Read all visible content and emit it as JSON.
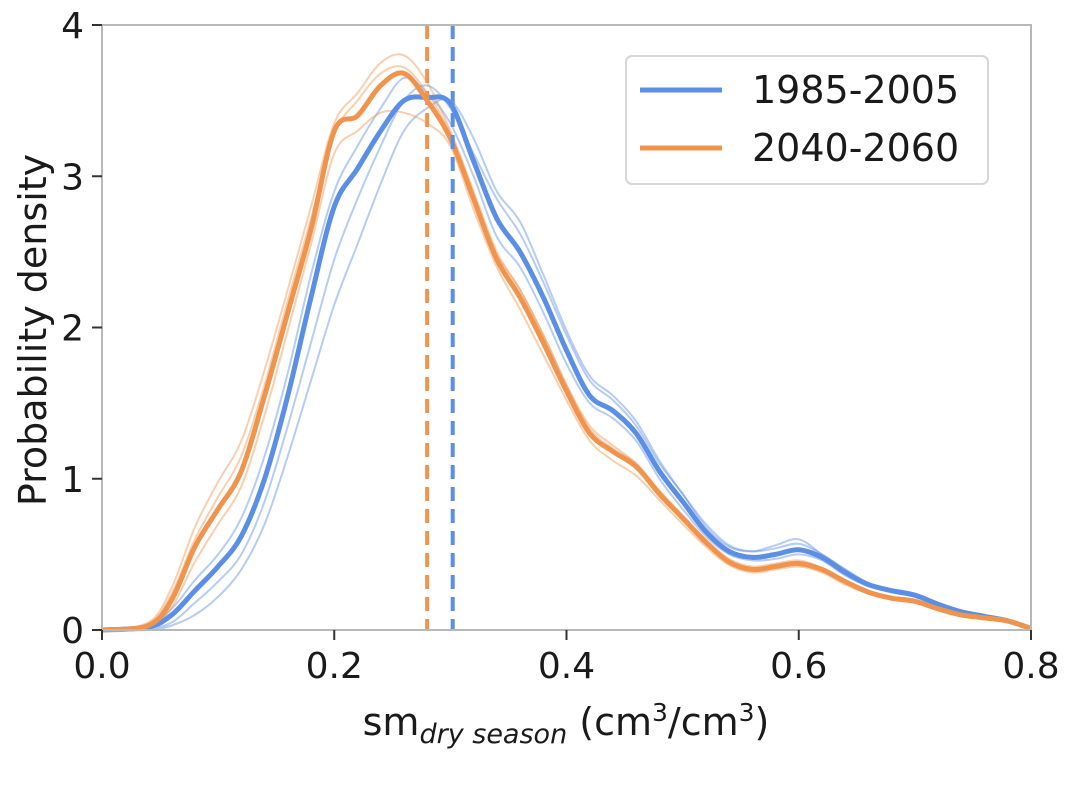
{
  "chart_data": {
    "type": "line",
    "xlabel_main": "sm",
    "xlabel_sub": "dry season",
    "xlabel_unit_open": " (cm",
    "xlabel_sup1": "3",
    "xlabel_unit_mid": "/cm",
    "xlabel_sup2": "3",
    "xlabel_unit_close": ")",
    "ylabel": "Probability density",
    "xlim": [
      0.0,
      0.8
    ],
    "ylim": [
      0,
      4
    ],
    "xticks": [
      "0.0",
      "0.2",
      "0.4",
      "0.6",
      "0.8"
    ],
    "yticks": [
      "0",
      "1",
      "2",
      "3",
      "4"
    ],
    "grid": false,
    "legend_position": "top-right",
    "legend": [
      "1985-2005",
      "2040-2060"
    ],
    "series": [
      {
        "name": "1985-2005",
        "color": "#5b8fe6",
        "mean_line_x": 0.302,
        "x": [
          0.0,
          0.04,
          0.06,
          0.08,
          0.1,
          0.12,
          0.14,
          0.16,
          0.18,
          0.2,
          0.22,
          0.24,
          0.26,
          0.28,
          0.3,
          0.32,
          0.34,
          0.36,
          0.38,
          0.4,
          0.42,
          0.44,
          0.46,
          0.48,
          0.5,
          0.52,
          0.54,
          0.56,
          0.58,
          0.6,
          0.62,
          0.64,
          0.66,
          0.68,
          0.7,
          0.72,
          0.74,
          0.76,
          0.78,
          0.8
        ],
        "values": [
          0.0,
          0.02,
          0.1,
          0.26,
          0.42,
          0.62,
          1.0,
          1.55,
          2.2,
          2.8,
          3.05,
          3.3,
          3.5,
          3.52,
          3.48,
          3.1,
          2.72,
          2.5,
          2.2,
          1.85,
          1.55,
          1.45,
          1.3,
          1.05,
          0.85,
          0.65,
          0.52,
          0.48,
          0.5,
          0.53,
          0.48,
          0.38,
          0.3,
          0.26,
          0.23,
          0.17,
          0.12,
          0.09,
          0.06,
          0.01
        ],
        "ensemble": [
          [
            0.0,
            0.01,
            0.05,
            0.18,
            0.32,
            0.5,
            0.85,
            1.35,
            1.9,
            2.45,
            2.85,
            3.2,
            3.5,
            3.6,
            3.45,
            3.15,
            2.85,
            2.62,
            2.3,
            1.95,
            1.65,
            1.52,
            1.35,
            1.1,
            0.9,
            0.68,
            0.55,
            0.52,
            0.56,
            0.6,
            0.5,
            0.4,
            0.31,
            0.27,
            0.24,
            0.18,
            0.13,
            0.1,
            0.06,
            0.01
          ],
          [
            0.0,
            0.03,
            0.14,
            0.33,
            0.5,
            0.74,
            1.15,
            1.7,
            2.35,
            2.9,
            3.2,
            3.45,
            3.65,
            3.55,
            3.35,
            3.0,
            2.6,
            2.4,
            2.1,
            1.76,
            1.5,
            1.4,
            1.25,
            1.0,
            0.8,
            0.62,
            0.5,
            0.46,
            0.47,
            0.5,
            0.46,
            0.36,
            0.29,
            0.25,
            0.22,
            0.16,
            0.11,
            0.08,
            0.05,
            0.01
          ],
          [
            0.0,
            0.0,
            0.03,
            0.1,
            0.22,
            0.4,
            0.7,
            1.15,
            1.65,
            2.15,
            2.55,
            2.95,
            3.3,
            3.45,
            3.5,
            3.25,
            2.9,
            2.7,
            2.35,
            1.98,
            1.68,
            1.55,
            1.38,
            1.12,
            0.9,
            0.7,
            0.56,
            0.52,
            0.54,
            0.57,
            0.5,
            0.4,
            0.31,
            0.27,
            0.24,
            0.18,
            0.13,
            0.1,
            0.06,
            0.02
          ]
        ]
      },
      {
        "name": "2040-2060",
        "color": "#f0944d",
        "mean_line_x": 0.28,
        "x": [
          0.0,
          0.04,
          0.06,
          0.08,
          0.1,
          0.12,
          0.14,
          0.16,
          0.18,
          0.2,
          0.22,
          0.24,
          0.26,
          0.28,
          0.3,
          0.32,
          0.34,
          0.36,
          0.38,
          0.4,
          0.42,
          0.44,
          0.46,
          0.48,
          0.5,
          0.52,
          0.54,
          0.56,
          0.58,
          0.6,
          0.62,
          0.64,
          0.66,
          0.68,
          0.7,
          0.72,
          0.74,
          0.76,
          0.78,
          0.8
        ],
        "values": [
          0.0,
          0.03,
          0.2,
          0.55,
          0.8,
          1.05,
          1.55,
          2.1,
          2.65,
          3.3,
          3.4,
          3.6,
          3.68,
          3.5,
          3.25,
          2.85,
          2.45,
          2.2,
          1.9,
          1.58,
          1.3,
          1.18,
          1.08,
          0.9,
          0.74,
          0.58,
          0.45,
          0.4,
          0.42,
          0.44,
          0.4,
          0.32,
          0.25,
          0.21,
          0.19,
          0.14,
          0.1,
          0.08,
          0.06,
          0.01
        ],
        "ensemble": [
          [
            0.0,
            0.05,
            0.28,
            0.68,
            0.98,
            1.25,
            1.72,
            2.25,
            2.8,
            3.35,
            3.55,
            3.75,
            3.8,
            3.62,
            3.3,
            2.9,
            2.5,
            2.25,
            1.95,
            1.62,
            1.35,
            1.22,
            1.1,
            0.92,
            0.75,
            0.59,
            0.46,
            0.41,
            0.43,
            0.45,
            0.41,
            0.33,
            0.26,
            0.22,
            0.2,
            0.15,
            0.1,
            0.08,
            0.06,
            0.01
          ],
          [
            0.0,
            0.02,
            0.15,
            0.45,
            0.7,
            0.95,
            1.42,
            1.98,
            2.55,
            3.15,
            3.3,
            3.42,
            3.42,
            3.35,
            3.2,
            2.78,
            2.4,
            2.12,
            1.82,
            1.52,
            1.25,
            1.12,
            1.02,
            0.86,
            0.7,
            0.55,
            0.43,
            0.38,
            0.4,
            0.42,
            0.38,
            0.3,
            0.24,
            0.2,
            0.18,
            0.13,
            0.09,
            0.07,
            0.05,
            0.01
          ],
          [
            0.0,
            0.04,
            0.24,
            0.6,
            0.88,
            1.15,
            1.62,
            2.18,
            2.72,
            3.28,
            3.5,
            3.68,
            3.72,
            3.55,
            3.28,
            2.85,
            2.48,
            2.25,
            1.95,
            1.62,
            1.33,
            1.2,
            1.1,
            0.92,
            0.76,
            0.6,
            0.47,
            0.42,
            0.44,
            0.46,
            0.41,
            0.33,
            0.26,
            0.22,
            0.2,
            0.15,
            0.11,
            0.09,
            0.07,
            0.02
          ]
        ]
      }
    ]
  }
}
